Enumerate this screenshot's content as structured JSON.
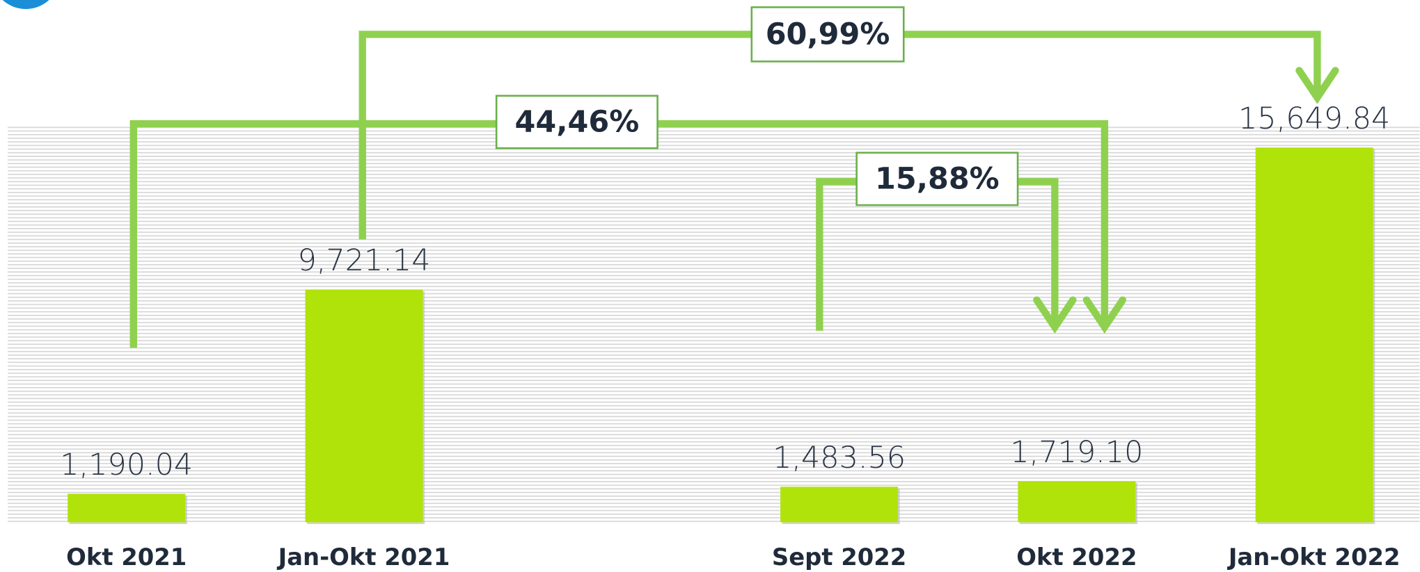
{
  "chart_data": {
    "type": "bar",
    "categories": [
      "Okt 2021",
      "Jan-Okt 2021",
      null,
      "Sept 2022",
      "Okt 2022",
      "Jan-Okt 2022"
    ],
    "values": [
      1190.04,
      9721.14,
      null,
      1483.56,
      1719.1,
      15649.84
    ],
    "value_labels": [
      "1,190.04",
      "9,721.14",
      null,
      "1,483.56",
      "1,719.10",
      "15,649.84"
    ],
    "color": "#b0e30a",
    "ylim": [
      0,
      16000
    ],
    "annotations": [
      "60,99%",
      "44,46%",
      "15,88%"
    ]
  }
}
